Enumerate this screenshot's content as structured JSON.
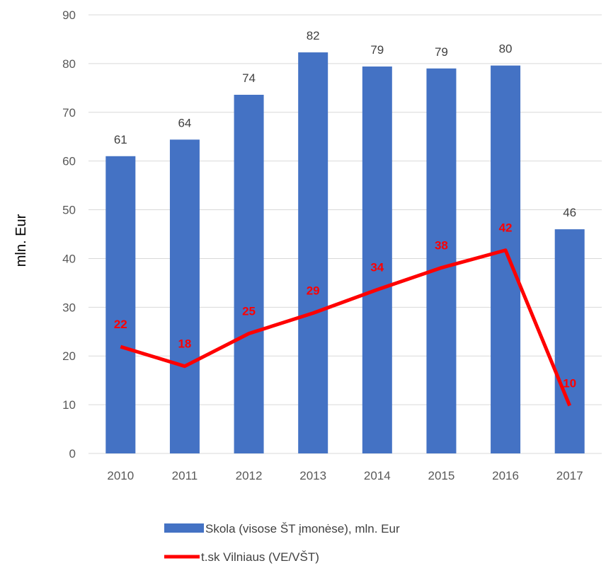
{
  "chart_data": {
    "type": "bar+line",
    "categories": [
      "2010",
      "2011",
      "2012",
      "2013",
      "2014",
      "2015",
      "2016",
      "2017"
    ],
    "series": [
      {
        "name": "Skola (visose ŠT įmonėse), mln. Eur",
        "type": "bar",
        "color": "#4472c4",
        "values": [
          61,
          64.4,
          73.6,
          82.3,
          79.4,
          79,
          79.6,
          46
        ],
        "labels": [
          "61",
          "64",
          "74",
          "82",
          "79",
          "79",
          "80",
          "46"
        ]
      },
      {
        "name": "t.sk Vilniaus (VE/VŠT)",
        "type": "line",
        "color": "#ff0000",
        "values": [
          21.9,
          17.9,
          24.6,
          28.8,
          33.6,
          38.1,
          41.7,
          9.8
        ],
        "labels": [
          "22",
          "18",
          "25",
          "29",
          "34",
          "38",
          "42",
          "10"
        ]
      }
    ],
    "ylabel": "mln. Eur",
    "ylim": [
      0,
      90
    ],
    "yticks": [
      "0",
      "10",
      "20",
      "30",
      "40",
      "50",
      "60",
      "70",
      "80",
      "90"
    ],
    "grid": true,
    "legend": "bottom"
  }
}
